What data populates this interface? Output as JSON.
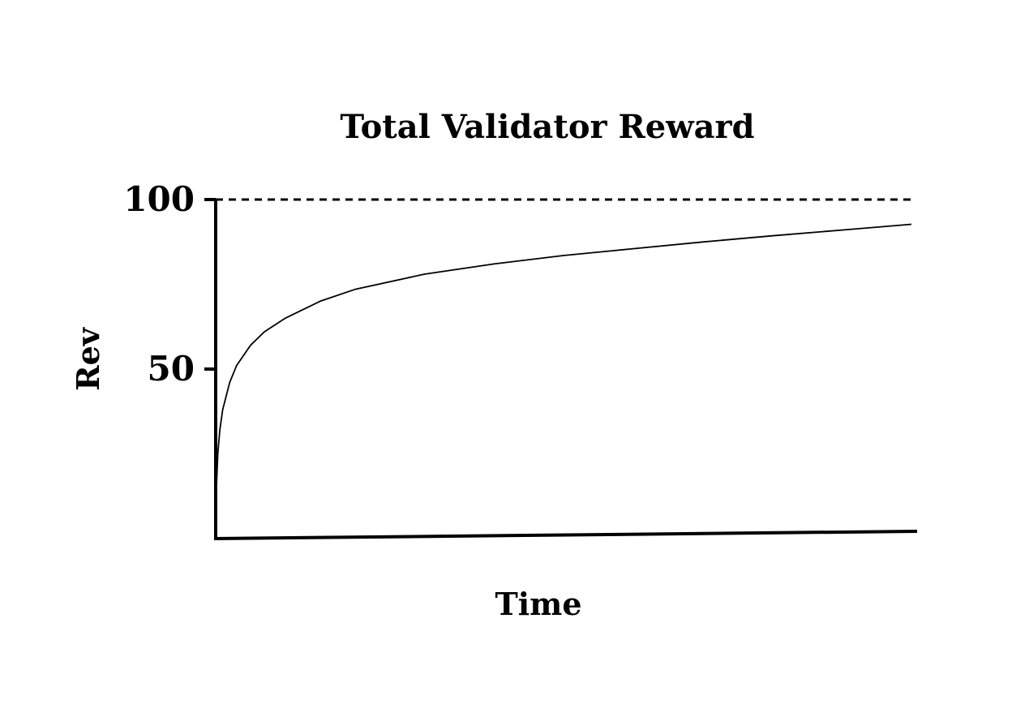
{
  "chart_data": {
    "type": "line",
    "title": "Total Validator Reward",
    "xlabel": "Time",
    "ylabel": "Rev",
    "ylim": [
      0,
      100
    ],
    "xlim": [
      0,
      100
    ],
    "yticks": [
      50,
      100
    ],
    "ytick_labels": [
      "50",
      "100"
    ],
    "grid": false,
    "legend": "none",
    "series": [
      {
        "x": [
          0,
          0.1,
          0.3,
          0.6,
          1,
          2,
          3,
          5,
          7,
          10,
          15,
          20,
          30,
          40,
          50,
          60,
          70,
          80,
          90,
          100
        ],
        "values": [
          0,
          15,
          25,
          32,
          38,
          46,
          51,
          57,
          61,
          65,
          70,
          73.5,
          78,
          81,
          83.5,
          85.5,
          87.5,
          89.3,
          91,
          92.7
        ],
        "color": "#000000"
      }
    ],
    "reference_lines": [
      {
        "y": 100,
        "style": "dashed",
        "color": "#000000"
      }
    ]
  }
}
